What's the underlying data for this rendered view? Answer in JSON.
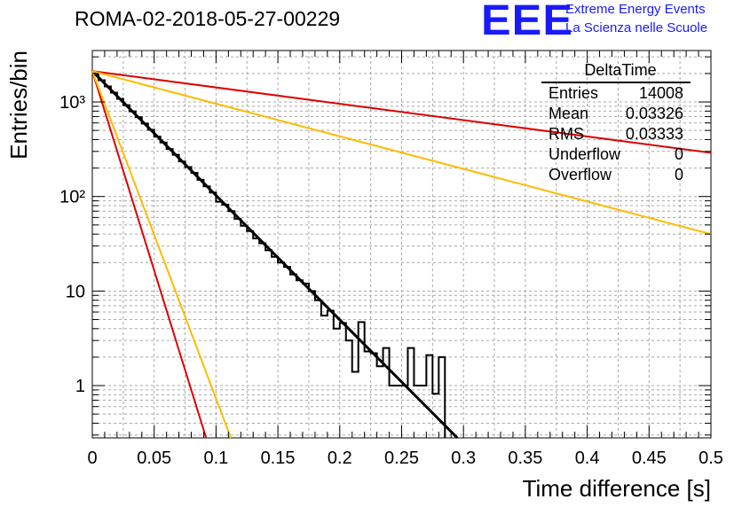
{
  "title": "ROMA-02-2018-05-27-00229",
  "logo": {
    "mark": "EEE",
    "line1": "Extreme Energy Events",
    "line2": "La Scienza nelle Scuole",
    "color": "#1a1aff"
  },
  "stats": {
    "name": "DeltaTime",
    "rows": [
      {
        "label": "Entries",
        "value": "14008"
      },
      {
        "label": "Mean",
        "value": "0.03326"
      },
      {
        "label": "RMS",
        "value": "0.03333"
      },
      {
        "label": "Underflow",
        "value": "0"
      },
      {
        "label": "Overflow",
        "value": "0"
      }
    ]
  },
  "chart_data": {
    "type": "line",
    "xlabel": "Time difference [s]",
    "ylabel": "Entries/bin",
    "xlim": [
      0,
      0.5
    ],
    "ylim": [
      0.28,
      3500
    ],
    "yscale": "log",
    "grid": true,
    "x_ticks": [
      "0",
      "0.05",
      "0.1",
      "0.15",
      "0.2",
      "0.25",
      "0.3",
      "0.35",
      "0.4",
      "0.45",
      "0.5"
    ],
    "y_ticks": [
      {
        "value": 1,
        "label": "1"
      },
      {
        "value": 10,
        "label": "10"
      },
      {
        "value": 100,
        "label": "10²"
      },
      {
        "value": 1000,
        "label": "10³"
      }
    ],
    "histogram": {
      "name": "DeltaTime",
      "bin_width": 0.005,
      "color": "#000000",
      "bin_low_edges": [
        0,
        0.005,
        0.01,
        0.015,
        0.02,
        0.025,
        0.03,
        0.035,
        0.04,
        0.045,
        0.05,
        0.055,
        0.06,
        0.065,
        0.07,
        0.075,
        0.08,
        0.085,
        0.09,
        0.095,
        0.1,
        0.105,
        0.11,
        0.115,
        0.12,
        0.125,
        0.13,
        0.135,
        0.14,
        0.145,
        0.15,
        0.155,
        0.16,
        0.165,
        0.17,
        0.175,
        0.18,
        0.185,
        0.19,
        0.195,
        0.2,
        0.205,
        0.21,
        0.215,
        0.22,
        0.225,
        0.23,
        0.235,
        0.24,
        0.245,
        0.25,
        0.255,
        0.26,
        0.265,
        0.27,
        0.275,
        0.28
      ],
      "counts": [
        1996,
        1697,
        1461,
        1254,
        1078,
        925,
        795,
        689,
        592,
        508,
        430,
        373,
        318,
        276,
        235,
        205,
        178,
        150,
        128,
        110,
        88,
        82,
        70,
        58,
        49,
        43,
        36,
        32,
        27,
        23,
        20,
        18,
        15,
        13,
        12,
        10,
        8,
        5.5,
        6.2,
        4.0,
        4.6,
        3.0,
        1.4,
        4.7,
        2.3,
        2.2,
        1.6,
        2.5,
        1.0,
        1.0,
        1.0,
        2.5,
        1.0,
        1.0,
        2.1,
        0.82,
        2.0
      ]
    },
    "fit_lines": [
      {
        "name": "fit",
        "color": "#000000",
        "width": 3,
        "points": [
          [
            0,
            2120
          ],
          [
            0.295,
            0.28
          ]
        ]
      },
      {
        "name": "red-steep",
        "color": "#dd0000",
        "width": 2,
        "points": [
          [
            0,
            2120
          ],
          [
            0.092,
            0.28
          ]
        ]
      },
      {
        "name": "yellow-steep",
        "color": "#ffbb00",
        "width": 2,
        "points": [
          [
            0,
            2120
          ],
          [
            0.112,
            0.28
          ]
        ]
      },
      {
        "name": "red-shallow",
        "color": "#dd0000",
        "width": 2,
        "points": [
          [
            0,
            2120
          ],
          [
            0.5,
            290
          ]
        ]
      },
      {
        "name": "yellow-shallow",
        "color": "#ffbb00",
        "width": 2,
        "points": [
          [
            0,
            2120
          ],
          [
            0.5,
            40
          ]
        ]
      }
    ]
  }
}
